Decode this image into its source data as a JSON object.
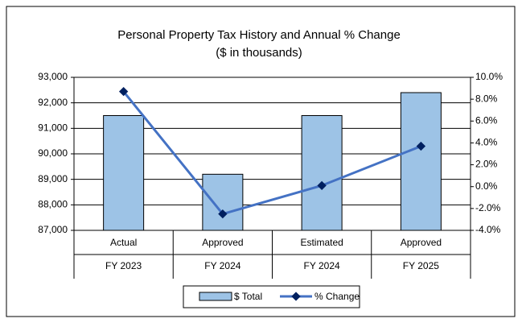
{
  "chart_data": {
    "type": "bar-line",
    "title": "Personal Property Tax History and Annual % Change",
    "subtitle": "($ in thousands)",
    "categories": [
      "Actual",
      "Approved",
      "Estimated",
      "Approved"
    ],
    "category_groups": [
      "FY 2023",
      "FY 2024",
      "FY 2024",
      "FY 2025"
    ],
    "series": [
      {
        "name": "$ Total",
        "type": "bar",
        "color": "#9dc3e6",
        "values": [
          91500,
          89200,
          91500,
          92400
        ]
      },
      {
        "name": "% Change",
        "type": "line",
        "axis": "y2",
        "color": "#4472c4",
        "marker_color": "#002060",
        "values": [
          8.7,
          -2.5,
          0.1,
          3.7
        ]
      }
    ],
    "ylim": [
      87000,
      93000
    ],
    "yticks": [
      {
        "value": 87000,
        "label": "87,000"
      },
      {
        "value": 88000,
        "label": "88,000"
      },
      {
        "value": 89000,
        "label": "89,000"
      },
      {
        "value": 90000,
        "label": "90,000"
      },
      {
        "value": 91000,
        "label": "91,000"
      },
      {
        "value": 92000,
        "label": "92,000"
      },
      {
        "value": 93000,
        "label": "93,000"
      }
    ],
    "y2lim": [
      -4,
      10
    ],
    "y2ticks": [
      {
        "value": -4,
        "label": "-4.0%"
      },
      {
        "value": -2,
        "label": "-2.0%"
      },
      {
        "value": 0,
        "label": "0.0%"
      },
      {
        "value": 2,
        "label": "2.0%"
      },
      {
        "value": 4,
        "label": "4.0%"
      },
      {
        "value": 6,
        "label": "6.0%"
      },
      {
        "value": 8,
        "label": "8.0%"
      },
      {
        "value": 10,
        "label": "10.0%"
      }
    ],
    "grid": true,
    "legend": "bottom"
  }
}
